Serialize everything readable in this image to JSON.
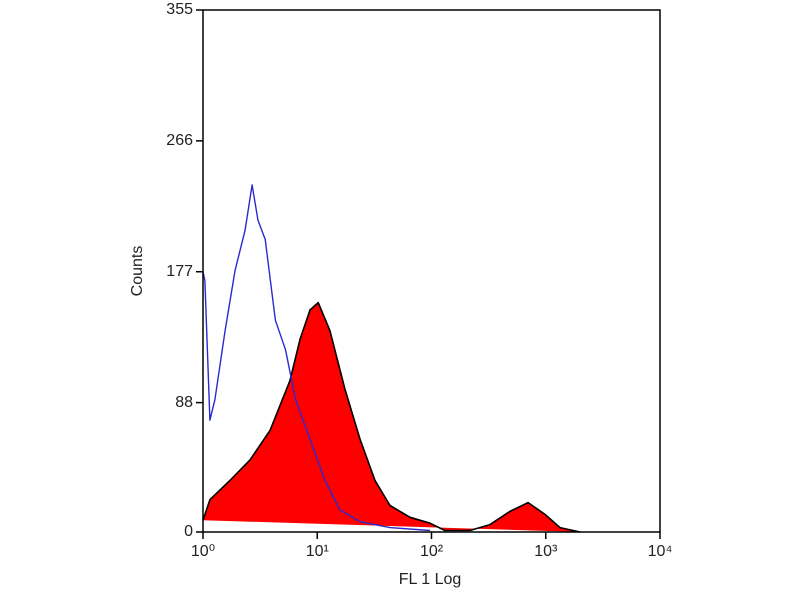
{
  "chart_data": {
    "type": "histogram-overlay",
    "xlabel": "FL 1 Log",
    "ylabel": "Counts",
    "xscale": "log",
    "xlim": [
      1,
      10000
    ],
    "ylim": [
      0,
      355
    ],
    "xticks": [
      {
        "value": 1,
        "label": "10⁰"
      },
      {
        "value": 10,
        "label": "10¹"
      },
      {
        "value": 100,
        "label": "10²"
      },
      {
        "value": 1000,
        "label": "10³"
      },
      {
        "value": 10000,
        "label": "10⁴"
      }
    ],
    "yticks": [
      0,
      88,
      177,
      266,
      355
    ],
    "series": [
      {
        "color": "#ff0000",
        "outline": "#000000",
        "filled": true,
        "x": [
          1,
          1.15,
          1.72,
          2.58,
          3.86,
          5.77,
          7.06,
          8.64,
          10.2,
          12.9,
          17.5,
          23.7,
          32,
          43.3,
          64.9,
          97,
          131,
          217,
          325,
          486,
          700,
          985,
          1333,
          1995
        ],
        "values": [
          8,
          22,
          35,
          49,
          69,
          103,
          131,
          151,
          156,
          137,
          97,
          63,
          35,
          18,
          10,
          6,
          1,
          1,
          5,
          14,
          20,
          12,
          3,
          0
        ]
      },
      {
        "color": "#2a2ad0",
        "filled": false,
        "x": [
          1,
          1.04,
          1.15,
          1.27,
          1.56,
          1.91,
          2.33,
          2.69,
          3.03,
          3.5,
          4.3,
          5.27,
          6.47,
          8.64,
          11.7,
          15.8,
          23.7,
          43.3,
          97
        ],
        "values": [
          177,
          171,
          76,
          90,
          137,
          178,
          205,
          236,
          212,
          199,
          144,
          124,
          90,
          63,
          35,
          15,
          7,
          3,
          1
        ]
      }
    ]
  }
}
